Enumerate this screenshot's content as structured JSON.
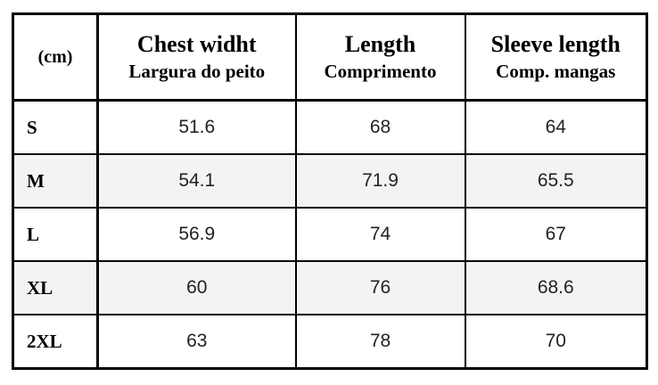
{
  "table": {
    "corner": "(cm)",
    "columns": [
      {
        "title": "Chest widht",
        "subtitle": "Largura do peito"
      },
      {
        "title": "Length",
        "subtitle": "Comprimento"
      },
      {
        "title": "Sleeve length",
        "subtitle": "Comp. mangas"
      }
    ],
    "rows": [
      [
        "S",
        "51.6",
        "68",
        "64"
      ],
      [
        "M",
        "54.1",
        "71.9",
        "65.5"
      ],
      [
        "L",
        "56.9",
        "74",
        "67"
      ],
      [
        "XL",
        "60",
        "76",
        "68.6"
      ],
      [
        "2XL",
        "63",
        "78",
        "70"
      ]
    ]
  }
}
